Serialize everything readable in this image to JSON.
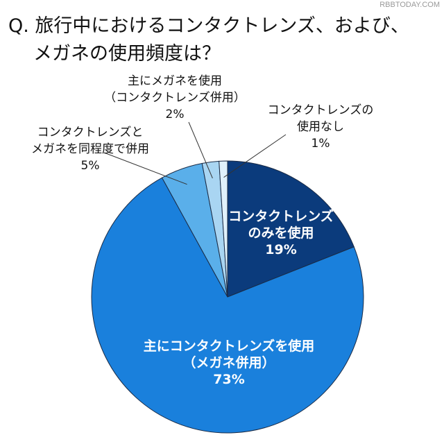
{
  "title_line1": "Q. 旅行中におけるコンタクトレンズ、および、",
  "title_line2": "メガネの使用頻度は？",
  "watermark": "RBBTODAY.COM",
  "chart_data": {
    "type": "pie",
    "start": "top",
    "direction": "clockwise",
    "slices": [
      {
        "label": [
          "コンタクトレンズ",
          "のみを使用"
        ],
        "value": 19,
        "value_label": "19%",
        "color": "#0b3b7c"
      },
      {
        "label": [
          "主にコンタクトレンズを使用",
          "（メガネ併用）"
        ],
        "value": 73,
        "value_label": "73%",
        "color": "#1a80dc"
      },
      {
        "label": [
          "コンタクトレンズと",
          "メガネを同程度で併用"
        ],
        "value": 5,
        "value_label": "5%",
        "color": "#5aafea"
      },
      {
        "label": [
          "主にメガネを使用",
          "（コンタクトレンズ併用）"
        ],
        "value": 2,
        "value_label": "2%",
        "color": "#a9d5f2"
      },
      {
        "label": [
          "コンタクトレンズの",
          "使用なし"
        ],
        "value": 1,
        "value_label": "1%",
        "color": "#e0f1fb"
      }
    ]
  }
}
